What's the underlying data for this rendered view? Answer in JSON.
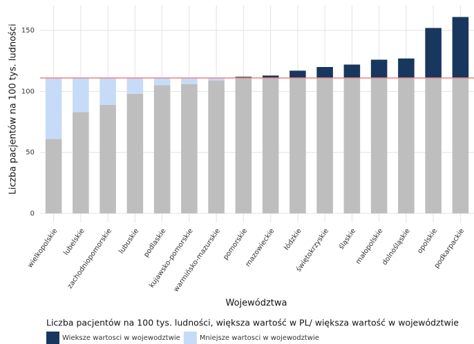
{
  "chart_data": {
    "type": "bar",
    "stacked": true,
    "x_label": "Województwa",
    "y_label": "Liczba pacjentów na 100 tys. ludności",
    "legend_title": "Liczba pacjentów na 100 tys. ludności, większa wartość w PL/ większa wartość w województwie",
    "categories": [
      "wielkopolskie",
      "lubelskie",
      "zachodniopomorskie",
      "lubuskie",
      "podlaskie",
      "kujawsko-pomorskie",
      "warmińsko-mazurskie",
      "pomorskie",
      "mazowieckie",
      "łódzkie",
      "świętokrzyskie",
      "śląskie",
      "małopolskie",
      "dolnośląskie",
      "opolskie",
      "podkarpackie"
    ],
    "series": [
      {
        "color": "#bebebe",
        "values": [
          61,
          83,
          89,
          98,
          105,
          106,
          109,
          111,
          111,
          111,
          111,
          111,
          111,
          111,
          111,
          111
        ]
      },
      {
        "name": "Mniejsze wartosci w wojewodztwie",
        "color": "#c6dbf7",
        "values": [
          50,
          28,
          22,
          13,
          6,
          5,
          2,
          0,
          0,
          0,
          0,
          0,
          0,
          0,
          0,
          0
        ]
      },
      {
        "name": "Wieksze wartosci w wojewodztwie",
        "color": "#17375e",
        "values": [
          0,
          0,
          0,
          0,
          0,
          0,
          0,
          1,
          2,
          6,
          9,
          11,
          15,
          16,
          41,
          50
        ]
      }
    ],
    "reference_line": {
      "value": 111,
      "color": "#f08080"
    },
    "ylim": [
      -7.4,
      170.4
    ],
    "yticks": [
      0,
      50,
      100,
      150
    ],
    "grid": true
  }
}
